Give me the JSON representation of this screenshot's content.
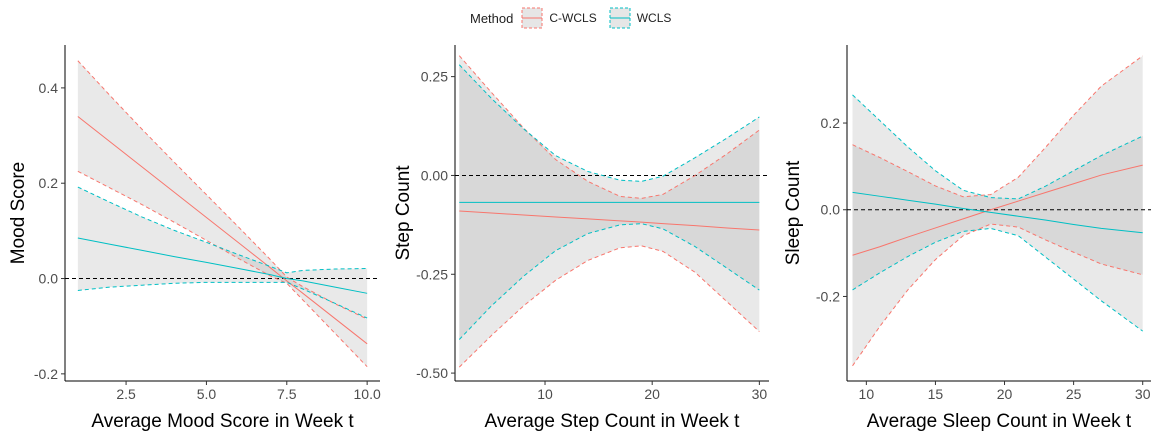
{
  "legend": {
    "title": "Method",
    "items": [
      {
        "label": "C-WCLS",
        "color": "#F8766D"
      },
      {
        "label": "WCLS",
        "color": "#00BFC4"
      }
    ]
  },
  "chart_data": [
    {
      "type": "line",
      "xlabel": "Average Mood Score in Week t",
      "ylabel": "Mood Score",
      "xlim": [
        0.6,
        10.4
      ],
      "ylim": [
        -0.215,
        0.49
      ],
      "xticks": [
        2.5,
        5.0,
        7.5,
        10.0
      ],
      "xtick_labels": [
        "2.5",
        "5.0",
        "7.5",
        "10.0"
      ],
      "yticks": [
        -0.2,
        0.0,
        0.2,
        0.4
      ],
      "ytick_labels": [
        "-0.2",
        "0.0",
        "0.2",
        "0.4"
      ],
      "reference_line": 0,
      "x": [
        1.0,
        2.0,
        3.0,
        4.0,
        5.0,
        6.0,
        7.0,
        7.5,
        8.0,
        9.0,
        10.0
      ],
      "series": [
        {
          "name": "C-WCLS",
          "color": "#F8766D",
          "estimate": [
            0.34,
            0.287,
            0.234,
            0.181,
            0.128,
            0.075,
            0.022,
            -0.005,
            -0.031,
            -0.084,
            -0.137
          ],
          "lower": [
            0.225,
            0.19,
            0.155,
            0.118,
            0.08,
            0.042,
            0.005,
            -0.01,
            -0.045,
            -0.115,
            -0.185
          ],
          "upper": [
            0.457,
            0.384,
            0.313,
            0.244,
            0.176,
            0.108,
            0.039,
            0.003,
            -0.017,
            -0.053,
            -0.085
          ]
        },
        {
          "name": "WCLS",
          "color": "#00BFC4",
          "estimate": [
            0.085,
            0.072,
            0.059,
            0.046,
            0.034,
            0.021,
            0.008,
            0.0,
            -0.005,
            -0.018,
            -0.031
          ],
          "lower": [
            -0.025,
            -0.018,
            -0.014,
            -0.01,
            -0.008,
            -0.008,
            -0.008,
            -0.008,
            -0.022,
            -0.052,
            -0.083
          ],
          "upper": [
            0.192,
            0.16,
            0.129,
            0.101,
            0.076,
            0.05,
            0.025,
            0.012,
            0.017,
            0.02,
            0.021
          ]
        }
      ]
    },
    {
      "type": "line",
      "xlabel": "Average Step Count in Week t",
      "ylabel": "Step Count",
      "xlim": [
        1.6,
        30.9
      ],
      "ylim": [
        -0.52,
        0.33
      ],
      "xticks": [
        10,
        20,
        30
      ],
      "xtick_labels": [
        "10",
        "20",
        "30"
      ],
      "yticks": [
        -0.5,
        -0.25,
        0.0,
        0.25
      ],
      "ytick_labels": [
        "-0.50",
        "-0.25",
        "0.00",
        "0.25"
      ],
      "reference_line": 0,
      "x": [
        2,
        5,
        8,
        11,
        14,
        17,
        19,
        21,
        24,
        27,
        30
      ],
      "series": [
        {
          "name": "C-WCLS",
          "color": "#F8766D",
          "estimate": [
            -0.09,
            -0.095,
            -0.1,
            -0.105,
            -0.11,
            -0.115,
            -0.118,
            -0.122,
            -0.127,
            -0.133,
            -0.138
          ],
          "lower": [
            -0.485,
            -0.405,
            -0.33,
            -0.265,
            -0.215,
            -0.183,
            -0.178,
            -0.192,
            -0.245,
            -0.32,
            -0.395
          ],
          "upper": [
            0.303,
            0.21,
            0.12,
            0.04,
            -0.015,
            -0.053,
            -0.058,
            -0.048,
            0.0,
            0.055,
            0.115
          ]
        },
        {
          "name": "WCLS",
          "color": "#00BFC4",
          "estimate": [
            -0.068,
            -0.068,
            -0.068,
            -0.068,
            -0.068,
            -0.068,
            -0.068,
            -0.068,
            -0.068,
            -0.068,
            -0.068
          ],
          "lower": [
            -0.415,
            -0.33,
            -0.255,
            -0.19,
            -0.147,
            -0.125,
            -0.122,
            -0.135,
            -0.18,
            -0.235,
            -0.29
          ],
          "upper": [
            0.28,
            0.195,
            0.118,
            0.05,
            0.01,
            -0.012,
            -0.015,
            -0.002,
            0.045,
            0.095,
            0.148
          ]
        }
      ]
    },
    {
      "type": "line",
      "xlabel": "Average Sleep Count in Week t",
      "ylabel": "Sleep Count",
      "xlim": [
        8.6,
        30.6
      ],
      "ylim": [
        -0.395,
        0.38
      ],
      "xticks": [
        10,
        15,
        20,
        25,
        30
      ],
      "xtick_labels": [
        "10",
        "15",
        "20",
        "25",
        "30"
      ],
      "yticks": [
        -0.2,
        0.0,
        0.2
      ],
      "ytick_labels": [
        "-0.2",
        "0.0",
        "0.2"
      ],
      "reference_line": 0,
      "x": [
        9,
        11,
        13,
        15,
        17,
        19,
        21,
        23,
        25,
        27,
        30
      ],
      "series": [
        {
          "name": "C-WCLS",
          "color": "#F8766D",
          "estimate": [
            -0.105,
            -0.085,
            -0.063,
            -0.042,
            -0.021,
            0.0,
            0.02,
            0.04,
            0.06,
            0.08,
            0.103
          ],
          "lower": [
            -0.36,
            -0.268,
            -0.185,
            -0.115,
            -0.06,
            -0.033,
            -0.04,
            -0.07,
            -0.098,
            -0.125,
            -0.15
          ],
          "upper": [
            0.15,
            0.12,
            0.088,
            0.055,
            0.03,
            0.035,
            0.075,
            0.145,
            0.218,
            0.285,
            0.355
          ]
        },
        {
          "name": "WCLS",
          "color": "#00BFC4",
          "estimate": [
            0.04,
            0.031,
            0.022,
            0.013,
            0.003,
            -0.006,
            -0.015,
            -0.024,
            -0.034,
            -0.043,
            -0.053
          ],
          "lower": [
            -0.185,
            -0.145,
            -0.108,
            -0.075,
            -0.05,
            -0.043,
            -0.06,
            -0.11,
            -0.16,
            -0.21,
            -0.28
          ],
          "upper": [
            0.265,
            0.205,
            0.145,
            0.09,
            0.045,
            0.028,
            0.025,
            0.055,
            0.09,
            0.125,
            0.17
          ]
        }
      ]
    }
  ]
}
